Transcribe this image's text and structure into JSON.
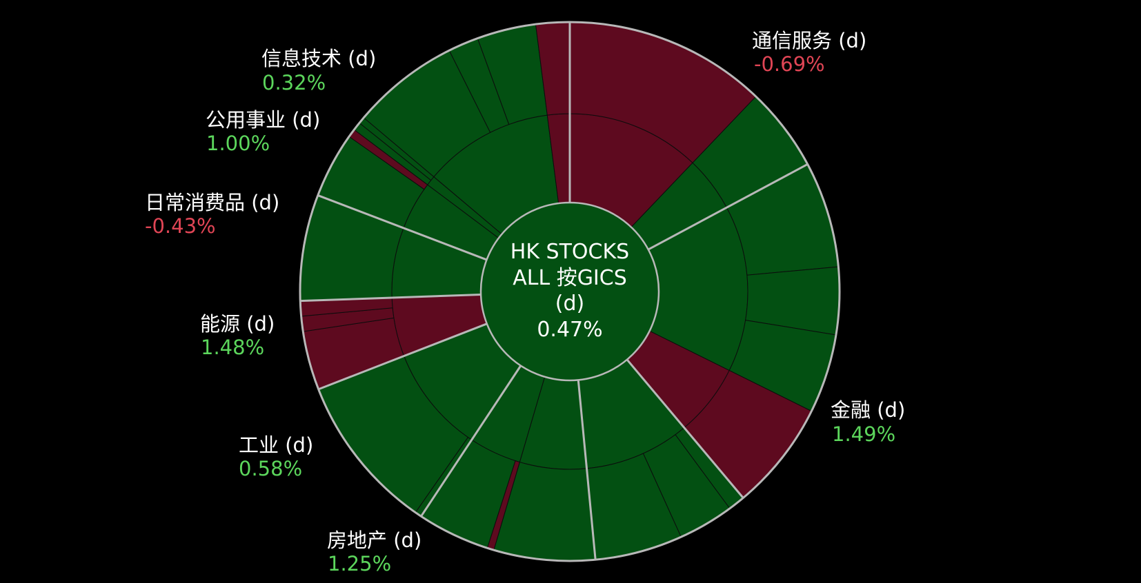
{
  "chart_data": {
    "type": "sunburst",
    "center": {
      "lines": [
        "HK STOCKS",
        "ALL 按GICS",
        "(d)"
      ],
      "value": "0.47%",
      "change": 0.47
    },
    "colors": {
      "up": "#035012",
      "down": "#5e0a1f",
      "positive_text": "#5cd65c",
      "negative_text": "#e04555",
      "sector_border": "#b8b8b8",
      "inner_border": "#0c0c0c",
      "background": "#000000"
    },
    "sectors": [
      {
        "name": "通信服务 (d)",
        "value_label": "-0.69%",
        "change": -0.69,
        "weight": 17.0,
        "children": [
          {
            "weight": 12.0,
            "change": -1.0,
            "children": [
              {
                "weight": 12.0,
                "change": -1.0
              }
            ]
          },
          {
            "weight": 5.0,
            "change": 0.5,
            "children": [
              {
                "weight": 5.0,
                "change": 0.5
              }
            ]
          }
        ]
      },
      {
        "name": "金融 (d)",
        "value_label": "1.49%",
        "change": 1.49,
        "weight": 21.5,
        "children": [
          {
            "weight": 15.0,
            "change": 1.6,
            "children": [
              {
                "weight": 6.3,
                "change": 1.8
              },
              {
                "weight": 4.0,
                "change": 1.5
              },
              {
                "weight": 4.7,
                "change": 1.2
              }
            ]
          },
          {
            "weight": 6.5,
            "change": -0.5,
            "children": [
              {
                "weight": 6.5,
                "change": -0.6
              }
            ]
          }
        ]
      },
      {
        "name": "房地产 (d)",
        "value_label": "1.25%",
        "change": 1.25,
        "weight": 9.5,
        "children": [
          {
            "weight": 9.5,
            "change": 1.25,
            "children": [
              {
                "weight": 1.0,
                "change": 1.0
              },
              {
                "weight": 3.3,
                "change": 1.3
              },
              {
                "weight": 5.2,
                "change": 1.2
              }
            ]
          }
        ]
      },
      {
        "name": "工业 (d)",
        "value_label": "0.58%",
        "change": 0.58,
        "weight": 10.7,
        "children": [
          {
            "weight": 6.0,
            "change": 1.0,
            "children": [
              {
                "weight": 6.0,
                "change": 1.0
              }
            ]
          },
          {
            "weight": 4.7,
            "change": 0.3,
            "children": [
              {
                "weight": 0.4,
                "change": -0.6
              },
              {
                "weight": 4.3,
                "change": 0.5
              }
            ]
          }
        ]
      },
      {
        "name": "能源 (d)",
        "value_label": "1.48%",
        "change": 1.48,
        "weight": 9.7,
        "children": [
          {
            "weight": 9.7,
            "change": 1.48,
            "children": [
              {
                "weight": 0.4,
                "change": 1.0
              },
              {
                "weight": 9.3,
                "change": 1.5
              }
            ]
          }
        ]
      },
      {
        "name": "日常消费品 (d)",
        "value_label": "-0.43%",
        "change": -0.43,
        "weight": 5.3,
        "children": [
          {
            "weight": 5.3,
            "change": -0.43,
            "children": [
              {
                "weight": 3.5,
                "change": -0.5
              },
              {
                "weight": 0.9,
                "change": -0.3
              },
              {
                "weight": 0.9,
                "change": -0.4
              }
            ]
          }
        ]
      },
      {
        "name": "公用事业 (d)",
        "value_label": "1.00%",
        "change": 1.0,
        "weight": 6.3,
        "children": [
          {
            "weight": 6.3,
            "change": 1.0,
            "children": [
              {
                "weight": 6.3,
                "change": 1.0
              }
            ]
          }
        ]
      },
      {
        "name": "信息技术 (d)",
        "value_label": "0.32%",
        "change": 0.32,
        "weight": 19.0,
        "children": [
          {
            "weight": 4.4,
            "change": 0.5,
            "children": [
              {
                "weight": 3.9,
                "change": 0.6
              },
              {
                "weight": 0.5,
                "change": -0.4
              }
            ]
          },
          {
            "weight": 0.9,
            "change": 0.2,
            "children": [
              {
                "weight": 0.5,
                "change": 0.2
              },
              {
                "weight": 0.4,
                "change": 0.3
              }
            ]
          },
          {
            "weight": 11.7,
            "change": 0.4,
            "children": [
              {
                "weight": 6.4,
                "change": 0.5
              },
              {
                "weight": 1.8,
                "change": 0.3
              },
              {
                "weight": 3.5,
                "change": 0.4
              }
            ]
          },
          {
            "weight": 2.0,
            "change": -0.8,
            "children": [
              {
                "weight": 2.0,
                "change": -0.8
              }
            ]
          }
        ]
      }
    ]
  }
}
